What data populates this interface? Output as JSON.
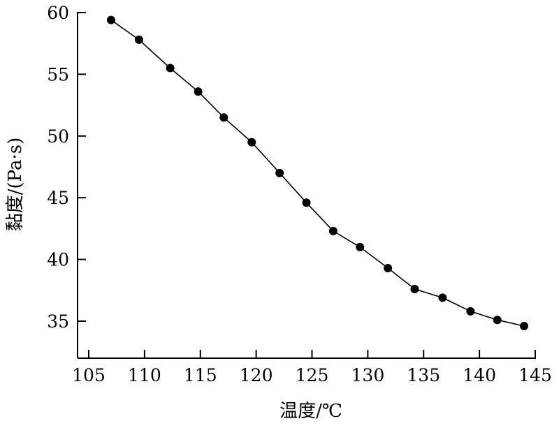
{
  "chart_data": {
    "type": "line",
    "title": "",
    "xlabel": "温度/℃",
    "ylabel": "黏度/(Pa·s)",
    "xlim": [
      105,
      145
    ],
    "ylim": [
      32,
      60
    ],
    "xticks": [
      105,
      110,
      115,
      120,
      125,
      130,
      135,
      140,
      145
    ],
    "yticks": [
      35,
      40,
      45,
      50,
      55,
      60
    ],
    "grid": false,
    "legend": "none",
    "series": [
      {
        "marker": "filled-circle",
        "color": "#000000",
        "x": [
          107.0,
          109.5,
          112.3,
          114.8,
          117.1,
          119.6,
          122.1,
          124.5,
          126.9,
          129.3,
          131.8,
          134.2,
          136.7,
          139.2,
          141.6,
          144.0
        ],
        "y": [
          59.4,
          57.8,
          55.5,
          53.6,
          51.5,
          49.5,
          47.0,
          44.6,
          42.3,
          41.0,
          39.3,
          37.6,
          36.9,
          35.8,
          35.1,
          34.6
        ]
      }
    ]
  }
}
